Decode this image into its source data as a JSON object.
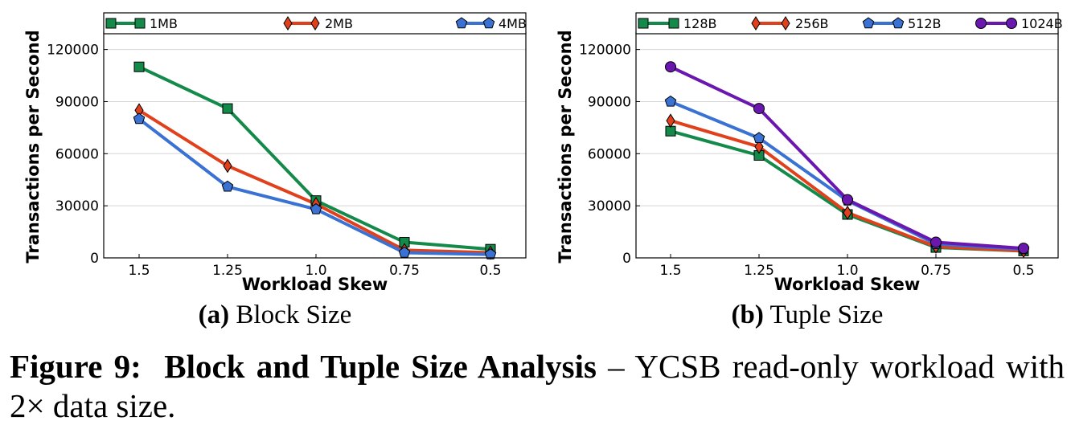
{
  "chart_data": [
    {
      "type": "line",
      "xlabel": "Workload Skew",
      "ylabel": "Transactions per Second",
      "categories": [
        "1.5",
        "1.25",
        "1.0",
        "0.75",
        "0.5"
      ],
      "ylim": [
        0,
        130000
      ],
      "yticks": [
        "0",
        "30000",
        "60000",
        "90000",
        "120000"
      ],
      "grid": true,
      "legend": "top",
      "caption_label": "(a)",
      "caption_text": "Block Size",
      "series": [
        {
          "name": "1MB",
          "values": [
            110000,
            86000,
            33000,
            9000,
            5000
          ],
          "color": "#138a4a",
          "marker": "square"
        },
        {
          "name": "2MB",
          "values": [
            85000,
            53000,
            31000,
            4500,
            3000
          ],
          "color": "#e0401b",
          "marker": "diamond"
        },
        {
          "name": "4MB",
          "values": [
            80000,
            41000,
            28000,
            3000,
            2000
          ],
          "color": "#3a72d4",
          "marker": "pentagon"
        }
      ]
    },
    {
      "type": "line",
      "xlabel": "Workload Skew",
      "ylabel": "Transactions per Second",
      "categories": [
        "1.5",
        "1.25",
        "1.0",
        "0.75",
        "0.5"
      ],
      "ylim": [
        0,
        130000
      ],
      "yticks": [
        "0",
        "30000",
        "60000",
        "90000",
        "120000"
      ],
      "grid": true,
      "legend": "top",
      "caption_label": "(b)",
      "caption_text": "Tuple Size",
      "series": [
        {
          "name": "128B",
          "values": [
            73000,
            59000,
            25000,
            6000,
            4000
          ],
          "color": "#138a4a",
          "marker": "square"
        },
        {
          "name": "256B",
          "values": [
            79000,
            64000,
            26000,
            6500,
            4000
          ],
          "color": "#e0401b",
          "marker": "diamond"
        },
        {
          "name": "512B",
          "values": [
            90000,
            69000,
            33000,
            8000,
            5000
          ],
          "color": "#3a72d4",
          "marker": "pentagon"
        },
        {
          "name": "1024B",
          "values": [
            110000,
            86000,
            33500,
            9000,
            5500
          ],
          "color": "#6a17b0",
          "marker": "circle"
        }
      ]
    }
  ],
  "figure_caption": {
    "label": "Figure 9:",
    "title": "Block and Tuple Size Analysis",
    "text": " – YCSB read-only workload with 2× data size."
  }
}
